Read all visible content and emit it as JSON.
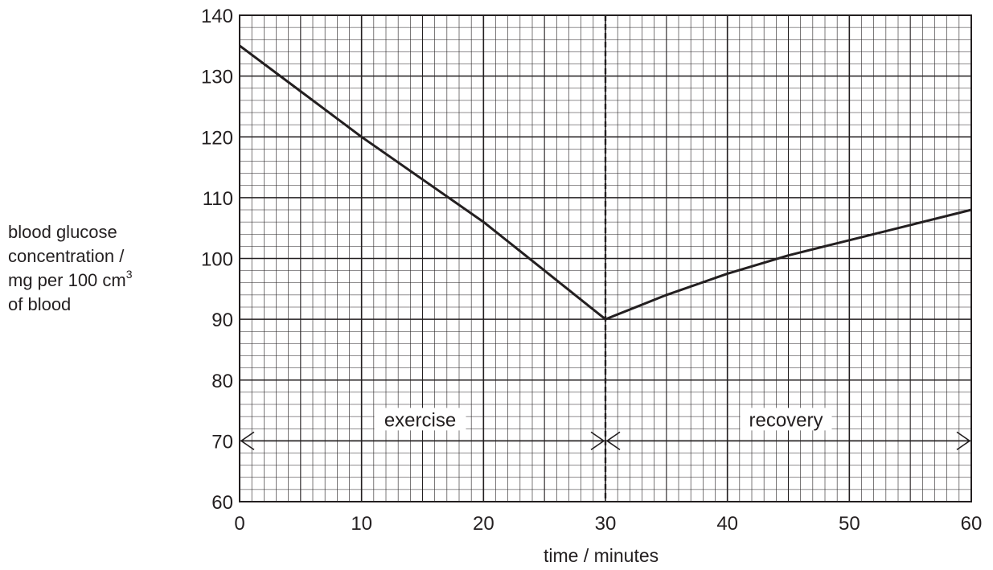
{
  "chart_data": {
    "type": "line",
    "xlabel": "time / minutes",
    "ylabel_lines": [
      "blood glucose",
      "concentration /",
      "mg per 100 cm",
      "of blood"
    ],
    "ylabel_superscript": "3",
    "xlim": [
      0,
      60
    ],
    "ylim": [
      60,
      140
    ],
    "x_ticks": [
      0,
      10,
      20,
      30,
      40,
      50,
      60
    ],
    "y_ticks": [
      60,
      70,
      80,
      90,
      100,
      110,
      120,
      130,
      140
    ],
    "grid": true,
    "series": [
      {
        "x": [
          0,
          5,
          10,
          15,
          20,
          25,
          30,
          35,
          40,
          45,
          50,
          55,
          60
        ],
        "y": [
          135,
          127.5,
          120,
          113,
          106,
          98,
          90,
          94,
          97.5,
          100.5,
          103,
          105.5,
          108
        ]
      }
    ],
    "divider_x": 30,
    "phases": [
      {
        "label": "exercise",
        "from": 0,
        "to": 30,
        "y": 70
      },
      {
        "label": "recovery",
        "from": 30,
        "to": 60,
        "y": 70
      }
    ]
  },
  "colors": {
    "ink": "#231f20",
    "grid": "#231f20",
    "background": "#ffffff"
  }
}
